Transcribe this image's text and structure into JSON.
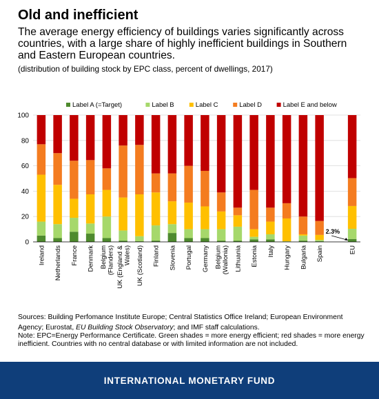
{
  "header": {
    "title": "Old and inefficient",
    "subtitle": "The average energy efficiency of buildings varies significantly across countries, with a large share of highly inefficient buildings in Southern and Eastern European countries.",
    "unit_note": "(distribution of building stock by EPC class, percent of dwellings, 2017)"
  },
  "footer": {
    "sources_prefix": "Sources: Building Perfomance Institute Europe; Central Statistics Office Ireland; European Environment Agency; Eurostat, ",
    "sources_italic": "EU Building Stock Observatory",
    "sources_suffix": "; and IMF staff calculations.",
    "note": "Note: EPC=Energy Performance Certificate. Green shades = more energy efficient; red shades = more energy inefficient. Countries with no central database or with limited information are not included.",
    "brand": "INTERNATIONAL MONETARY FUND"
  },
  "colors": {
    "background": "#ffffff",
    "footer_bar": "#0f3e7a",
    "gridline": "#d9d9d9"
  },
  "chart_data": {
    "type": "bar",
    "stacked": true,
    "categories": [
      "Ireland",
      "Netherlands",
      "France",
      "Denmark",
      "Belgium (Flanders)",
      "UK (England & Wales)",
      "UK (Scotland)",
      "Finland",
      "Slovenia",
      "Portugal",
      "Germany",
      "Belgium (Wallonia)",
      "Lithuania",
      "Estonia",
      "Italy",
      "Hungary",
      "Bulgaria",
      "Spain",
      "",
      "EU"
    ],
    "category_label_lines": [
      [
        "Ireland"
      ],
      [
        "Netherlands"
      ],
      [
        "France"
      ],
      [
        "Denmark"
      ],
      [
        "Belgium",
        "(Flanders)"
      ],
      [
        "UK (England &",
        "Wales)"
      ],
      [
        "UK (Scotland)"
      ],
      [
        "Finland"
      ],
      [
        "Slovenia"
      ],
      [
        "Portugal"
      ],
      [
        "Germany"
      ],
      [
        "Belgium",
        "(Wallonia)"
      ],
      [
        "Lithuania"
      ],
      [
        "Estonia"
      ],
      [
        "Italy"
      ],
      [
        "Hungary"
      ],
      [
        "Bulgaria"
      ],
      [
        "Spain"
      ],
      [],
      [
        "EU"
      ]
    ],
    "series": [
      {
        "name": "Label A (=Target)",
        "color": "#4e8a2e",
        "values": [
          5,
          3,
          8,
          6.5,
          3,
          1,
          0.5,
          1,
          7,
          3,
          3,
          1,
          1,
          2,
          2,
          0,
          1,
          0.5,
          null,
          2.3
        ]
      },
      {
        "name": "Label B",
        "color": "#a6d86b",
        "values": [
          11,
          11,
          11,
          8,
          17,
          8,
          4,
          12,
          7,
          7,
          7,
          9,
          11,
          2,
          4,
          0.5,
          4,
          1,
          null,
          8
        ]
      },
      {
        "name": "Label C",
        "color": "#ffc000",
        "values": [
          37,
          31,
          15,
          23,
          21,
          26,
          33,
          26,
          18,
          21,
          18,
          14,
          9,
          6,
          10,
          18,
          1,
          4,
          null,
          18
        ]
      },
      {
        "name": "Label D",
        "color": "#f47c20",
        "values": [
          24,
          25,
          30,
          27,
          17,
          41,
          39,
          15,
          22,
          29,
          28,
          15,
          6,
          31,
          11,
          12,
          14,
          11,
          null,
          22
        ]
      },
      {
        "name": "Label E and below",
        "color": "#c00000",
        "values": [
          23,
          30,
          36,
          35.5,
          42,
          24,
          23.5,
          46,
          46,
          40,
          44,
          61,
          73,
          59,
          73,
          69.5,
          80,
          83.5,
          null,
          49.7
        ]
      }
    ],
    "ylim": [
      0,
      100
    ],
    "yticks": [
      0,
      20,
      40,
      60,
      80,
      100
    ],
    "grid": "horizontal",
    "legend_position": "top",
    "annotations": [
      {
        "text": "2.3%",
        "target": "EU",
        "series": "Label A (=Target)"
      }
    ]
  }
}
